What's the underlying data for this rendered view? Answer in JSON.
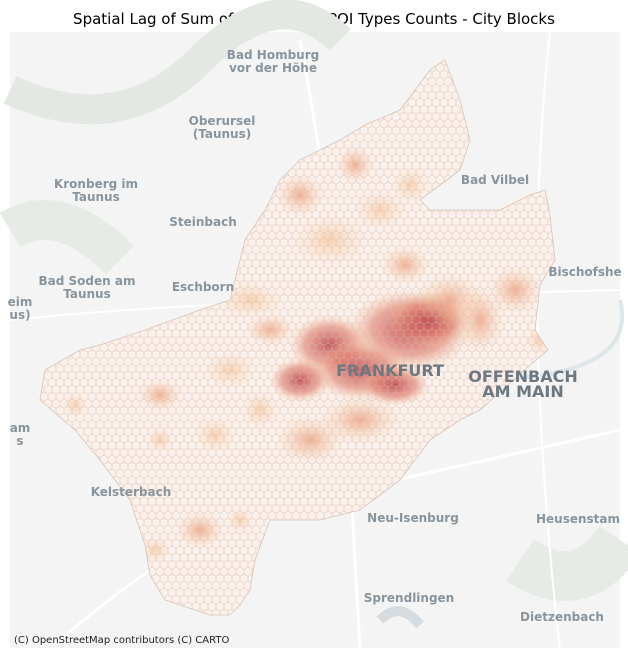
{
  "title": "Spatial Lag of Sum of Normalized POI Types Counts - City Blocks",
  "map": {
    "places": [
      {
        "lines": [
          "Bad Homburg",
          "vor der Höhe"
        ]
      },
      {
        "lines": [
          "Oberursel",
          "(Taunus)"
        ]
      },
      {
        "lines": [
          "Kronberg im",
          "Taunus"
        ]
      },
      {
        "lines": [
          "Steinbach"
        ]
      },
      {
        "lines": [
          "Bad Vilbel"
        ]
      },
      {
        "lines": [
          "Bad Soden am",
          "Taunus"
        ]
      },
      {
        "lines": [
          "Eschborn"
        ]
      },
      {
        "lines": [
          "Bischofshe"
        ]
      },
      {
        "lines": [
          "eim",
          "us)"
        ]
      },
      {
        "lines": [
          "FRANKFURT"
        ]
      },
      {
        "lines": [
          "OFFENBACH",
          "AM MAIN"
        ]
      },
      {
        "lines": [
          "am",
          "s"
        ]
      },
      {
        "lines": [
          "Kelsterbach"
        ]
      },
      {
        "lines": [
          "Neu-Isenburg"
        ]
      },
      {
        "lines": [
          "Heusenstam"
        ]
      },
      {
        "lines": [
          "Sprendlingen"
        ]
      },
      {
        "lines": [
          "Dietzenbach"
        ]
      }
    ],
    "attribution": "(C) OpenStreetMap contributors (C) CARTO"
  }
}
